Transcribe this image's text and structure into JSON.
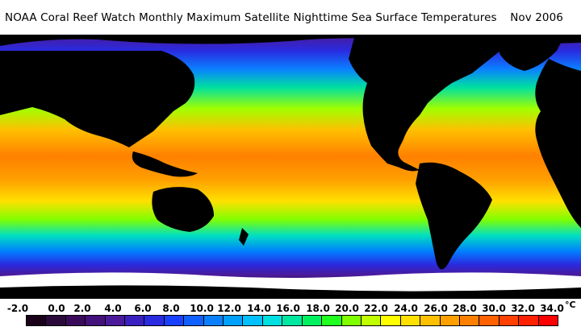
{
  "title": {
    "main": "NOAA Coral Reef Watch Monthly Maximum Satellite Nighttime Sea Surface Temperatures",
    "date": "Nov 2006"
  },
  "map": {
    "land_color": "#000000",
    "ice_color": "#ffffff",
    "description_type": "global sea surface temperature map"
  },
  "scale": {
    "unit": "°C",
    "tick_labels": [
      "-2.0",
      "0.0",
      "2.0",
      "4.0",
      "6.0",
      "8.0",
      "10.0",
      "12.0",
      "14.0",
      "16.0",
      "18.0",
      "20.0",
      "22.0",
      "24.0",
      "26.0",
      "28.0",
      "30.0",
      "32.0",
      "34.0"
    ],
    "colors": [
      "#1a0018",
      "#2a0a3a",
      "#3a0a5a",
      "#44107a",
      "#4a1a9a",
      "#3a20c0",
      "#2a2ae0",
      "#1a40ff",
      "#1060ff",
      "#0a80ff",
      "#00a0ff",
      "#00c0ff",
      "#00e0e0",
      "#00e8a0",
      "#00f060",
      "#20ff20",
      "#80ff00",
      "#c0ff00",
      "#ffff00",
      "#ffe000",
      "#ffc000",
      "#ffa000",
      "#ff8000",
      "#ff6000",
      "#ff4000",
      "#ff2000",
      "#ff0000"
    ]
  }
}
